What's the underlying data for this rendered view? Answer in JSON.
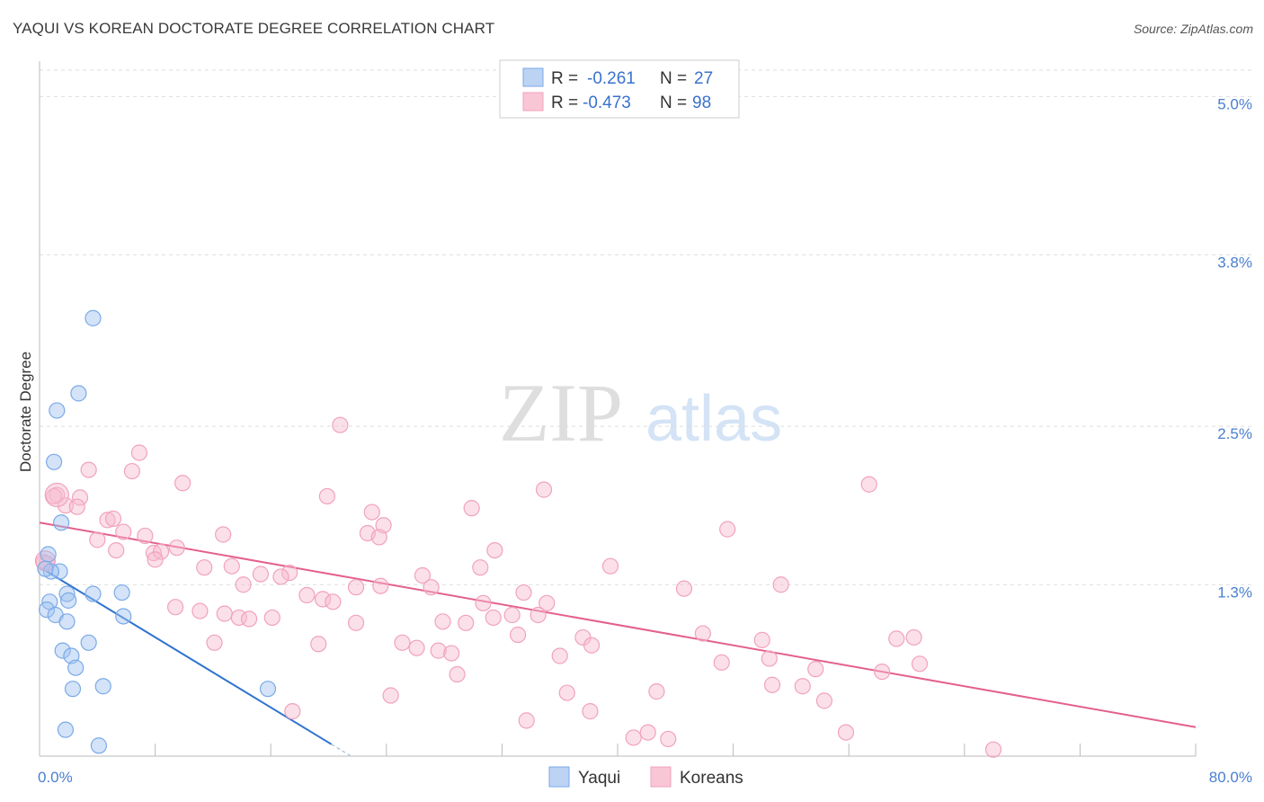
{
  "header": {
    "title": "YAQUI VS KOREAN DOCTORATE DEGREE CORRELATION CHART",
    "source": "Source: ZipAtlas.com"
  },
  "watermark": {
    "zip": "ZIP",
    "atlas": "atlas"
  },
  "legend": {
    "rows": [
      {
        "r_label": "R =",
        "r_value": "-0.261",
        "n_label": "N =",
        "n_value": "27"
      },
      {
        "r_label": "R =",
        "r_value": "-0.473",
        "n_label": "N =",
        "n_value": "98"
      }
    ]
  },
  "chart_data": {
    "type": "scatter",
    "title": "YAQUI VS KOREAN DOCTORATE DEGREE CORRELATION CHART",
    "xlabel": "",
    "ylabel": "Doctorate Degree",
    "xlim": [
      0,
      80
    ],
    "ylim": [
      0,
      5.2
    ],
    "x_tick_labels": [
      "0.0%",
      "80.0%"
    ],
    "y_ticks": [
      1.3,
      2.5,
      3.8,
      5.0
    ],
    "y_tick_labels": [
      "1.3%",
      "2.5%",
      "3.8%",
      "5.0%"
    ],
    "grid": true,
    "legend_position": "top-center",
    "colors": {
      "Yaqui": "#7aaae8",
      "Koreans": "#f1a2bc",
      "yaqui_line": "#2f73d0",
      "korean_line": "#e4608c"
    },
    "series": [
      {
        "name": "Yaqui",
        "r": -0.261,
        "n": 27,
        "trend": {
          "x0": 0.2,
          "y0": 1.42,
          "x1": 20.2,
          "y1": 0.09,
          "dash_to_x": 21.5
        },
        "points": [
          [
            3.7,
            3.32
          ],
          [
            2.7,
            2.75
          ],
          [
            1.2,
            2.62
          ],
          [
            1.0,
            2.23
          ],
          [
            1.5,
            1.77
          ],
          [
            0.6,
            1.53
          ],
          [
            1.4,
            1.4
          ],
          [
            0.8,
            1.4
          ],
          [
            0.4,
            1.42
          ],
          [
            3.7,
            1.23
          ],
          [
            1.9,
            1.23
          ],
          [
            2.0,
            1.18
          ],
          [
            0.7,
            1.17
          ],
          [
            0.5,
            1.11
          ],
          [
            1.1,
            1.07
          ],
          [
            5.7,
            1.24
          ],
          [
            5.8,
            1.06
          ],
          [
            1.9,
            1.02
          ],
          [
            3.4,
            0.86
          ],
          [
            1.6,
            0.8
          ],
          [
            2.2,
            0.76
          ],
          [
            2.5,
            0.67
          ],
          [
            4.4,
            0.53
          ],
          [
            2.3,
            0.51
          ],
          [
            15.8,
            0.51
          ],
          [
            1.8,
            0.2
          ],
          [
            4.1,
            0.08
          ]
        ]
      },
      {
        "name": "Koreans",
        "r": -0.473,
        "n": 98,
        "trend": {
          "x0": 0.0,
          "y0": 1.77,
          "x1": 80.0,
          "y1": 0.22
        },
        "points": [
          [
            20.8,
            2.51
          ],
          [
            6.9,
            2.3
          ],
          [
            3.4,
            2.17
          ],
          [
            6.4,
            2.16
          ],
          [
            9.9,
            2.07
          ],
          [
            1.2,
            1.98
          ],
          [
            1.0,
            1.97
          ],
          [
            2.8,
            1.96
          ],
          [
            19.9,
            1.97
          ],
          [
            34.9,
            2.02
          ],
          [
            57.4,
            2.06
          ],
          [
            1.8,
            1.9
          ],
          [
            2.6,
            1.89
          ],
          [
            29.9,
            1.88
          ],
          [
            23.0,
            1.85
          ],
          [
            4.7,
            1.79
          ],
          [
            5.1,
            1.8
          ],
          [
            5.8,
            1.7
          ],
          [
            12.7,
            1.68
          ],
          [
            23.8,
            1.75
          ],
          [
            22.7,
            1.69
          ],
          [
            23.5,
            1.66
          ],
          [
            7.3,
            1.67
          ],
          [
            4.0,
            1.64
          ],
          [
            47.6,
            1.72
          ],
          [
            9.5,
            1.58
          ],
          [
            7.9,
            1.54
          ],
          [
            5.3,
            1.56
          ],
          [
            8.4,
            1.55
          ],
          [
            8.0,
            1.49
          ],
          [
            31.5,
            1.56
          ],
          [
            11.4,
            1.43
          ],
          [
            13.3,
            1.44
          ],
          [
            0.3,
            1.47
          ],
          [
            0.5,
            1.46
          ],
          [
            17.3,
            1.39
          ],
          [
            15.3,
            1.38
          ],
          [
            16.7,
            1.36
          ],
          [
            30.5,
            1.43
          ],
          [
            26.5,
            1.37
          ],
          [
            39.5,
            1.44
          ],
          [
            14.1,
            1.3
          ],
          [
            18.5,
            1.22
          ],
          [
            21.9,
            1.28
          ],
          [
            23.6,
            1.29
          ],
          [
            19.6,
            1.19
          ],
          [
            20.3,
            1.17
          ],
          [
            27.1,
            1.28
          ],
          [
            33.5,
            1.24
          ],
          [
            30.7,
            1.16
          ],
          [
            35.1,
            1.16
          ],
          [
            44.6,
            1.27
          ],
          [
            51.3,
            1.3
          ],
          [
            9.4,
            1.13
          ],
          [
            12.8,
            1.08
          ],
          [
            11.1,
            1.1
          ],
          [
            13.8,
            1.05
          ],
          [
            14.5,
            1.04
          ],
          [
            16.1,
            1.05
          ],
          [
            21.9,
            1.01
          ],
          [
            29.5,
            1.01
          ],
          [
            31.4,
            1.05
          ],
          [
            32.7,
            1.07
          ],
          [
            27.9,
            1.02
          ],
          [
            34.5,
            1.07
          ],
          [
            33.1,
            0.92
          ],
          [
            45.9,
            0.93
          ],
          [
            50.0,
            0.88
          ],
          [
            37.6,
            0.9
          ],
          [
            59.3,
            0.89
          ],
          [
            60.5,
            0.9
          ],
          [
            12.1,
            0.86
          ],
          [
            19.3,
            0.85
          ],
          [
            25.1,
            0.86
          ],
          [
            26.1,
            0.82
          ],
          [
            27.6,
            0.8
          ],
          [
            28.5,
            0.78
          ],
          [
            38.2,
            0.84
          ],
          [
            36.0,
            0.76
          ],
          [
            47.2,
            0.71
          ],
          [
            50.5,
            0.74
          ],
          [
            53.7,
            0.66
          ],
          [
            60.9,
            0.7
          ],
          [
            58.3,
            0.64
          ],
          [
            28.9,
            0.62
          ],
          [
            50.7,
            0.54
          ],
          [
            52.8,
            0.53
          ],
          [
            42.7,
            0.49
          ],
          [
            36.5,
            0.48
          ],
          [
            24.3,
            0.46
          ],
          [
            54.3,
            0.42
          ],
          [
            17.5,
            0.34
          ],
          [
            38.1,
            0.34
          ],
          [
            33.7,
            0.27
          ],
          [
            42.1,
            0.18
          ],
          [
            41.1,
            0.14
          ],
          [
            43.5,
            0.13
          ],
          [
            55.8,
            0.18
          ],
          [
            66.0,
            0.05
          ]
        ]
      }
    ]
  },
  "bottom_legend": {
    "items": [
      "Yaqui",
      "Koreans"
    ]
  }
}
